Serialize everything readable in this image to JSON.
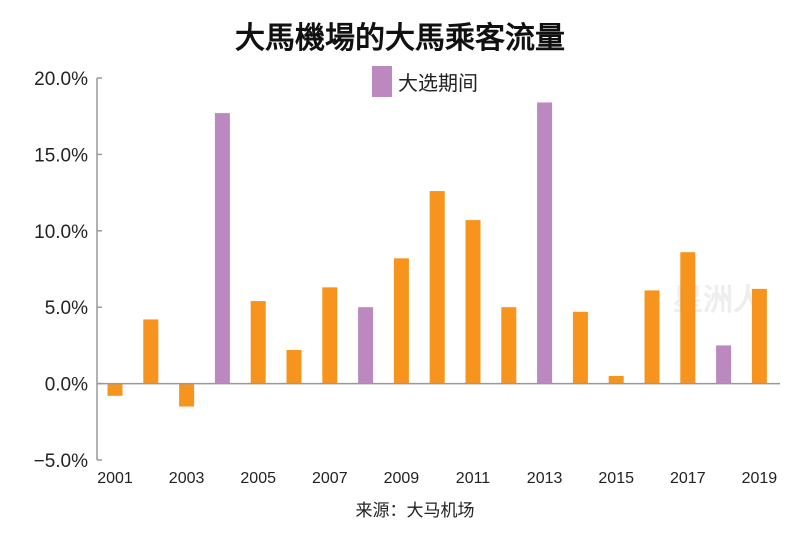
{
  "chart_data": {
    "type": "bar",
    "title": "大馬機場的大馬乘客流量",
    "source": "来源：大马机场",
    "watermark": "星洲人",
    "legend": {
      "label": "大选期间",
      "color": "#bb88c0",
      "placement": "top-center"
    },
    "colors": {
      "normal": "#f7941d",
      "election": "#bb88c0",
      "axis": "#999999"
    },
    "ylim": [
      -5,
      20
    ],
    "yticks": [
      {
        "value": -5,
        "label": "−5.0%"
      },
      {
        "value": 0,
        "label": "0.0%"
      },
      {
        "value": 5,
        "label": "5.0%"
      },
      {
        "value": 10,
        "label": "10.0%"
      },
      {
        "value": 15,
        "label": "15.0%"
      },
      {
        "value": 20,
        "label": "20.0%"
      }
    ],
    "xlabel": "",
    "ylabel": "",
    "categories": [
      "2001",
      "2002",
      "2003",
      "2004",
      "2005",
      "2006",
      "2007",
      "2008",
      "2009",
      "2010",
      "2011",
      "2012",
      "2013",
      "2014",
      "2015",
      "2016",
      "2017",
      "2018",
      "2019"
    ],
    "xtick_labels": [
      "2001",
      "2003",
      "2005",
      "2007",
      "2009",
      "2011",
      "2013",
      "2015",
      "2017",
      "2019"
    ],
    "values": [
      -0.8,
      4.2,
      -1.5,
      17.7,
      5.4,
      2.2,
      6.3,
      5.0,
      8.2,
      12.6,
      10.7,
      5.0,
      18.4,
      4.7,
      0.5,
      6.1,
      8.6,
      2.5,
      6.2
    ],
    "election": [
      false,
      false,
      false,
      true,
      false,
      false,
      false,
      true,
      false,
      false,
      false,
      false,
      true,
      false,
      false,
      false,
      false,
      true,
      false
    ]
  }
}
